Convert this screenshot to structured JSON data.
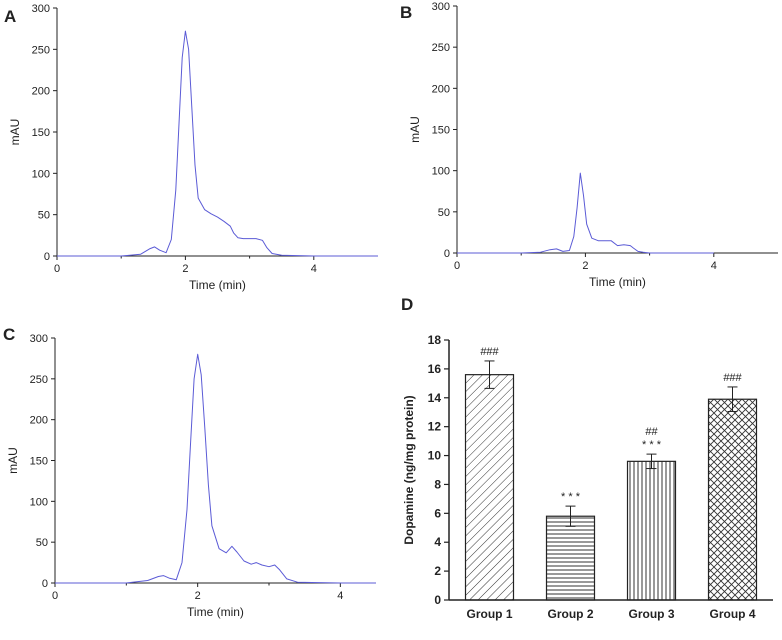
{
  "colors": {
    "trace": "#5b5bd6",
    "axis": "#222222",
    "hatch": "#333333"
  },
  "chart_data": [
    {
      "type": "line",
      "panel_label": "A",
      "xlabel": "Time (min)",
      "ylabel": "mAU",
      "xlim": [
        0,
        5
      ],
      "ylim": [
        0,
        300
      ],
      "xticks": [
        0,
        2,
        4
      ],
      "yticks": [
        0,
        50,
        100,
        150,
        200,
        250,
        300
      ],
      "x": [
        0,
        0.5,
        1.0,
        1.3,
        1.45,
        1.52,
        1.6,
        1.7,
        1.78,
        1.85,
        1.9,
        1.95,
        2.0,
        2.05,
        2.1,
        2.15,
        2.2,
        2.3,
        2.4,
        2.5,
        2.6,
        2.7,
        2.75,
        2.82,
        2.9,
        3.0,
        3.1,
        3.2,
        3.27,
        3.35,
        3.5,
        4.0,
        5.0
      ],
      "y": [
        0,
        0,
        0,
        2,
        9,
        11,
        7,
        4,
        20,
        80,
        160,
        240,
        272,
        250,
        180,
        110,
        70,
        56,
        51,
        47,
        42,
        36,
        28,
        22,
        21,
        21,
        21,
        19,
        10,
        3,
        1,
        0,
        0
      ]
    },
    {
      "type": "line",
      "panel_label": "B",
      "xlabel": "Time (min)",
      "ylabel": "mAU",
      "xlim": [
        0,
        5
      ],
      "ylim": [
        0,
        300
      ],
      "xticks": [
        0,
        2,
        4
      ],
      "yticks": [
        0,
        50,
        100,
        150,
        200,
        250,
        300
      ],
      "x": [
        0,
        0.5,
        1.0,
        1.3,
        1.45,
        1.55,
        1.65,
        1.75,
        1.82,
        1.87,
        1.92,
        1.97,
        2.02,
        2.1,
        2.2,
        2.3,
        2.4,
        2.5,
        2.6,
        2.7,
        2.75,
        2.82,
        2.9,
        3.0,
        4.0
      ],
      "y": [
        0,
        0,
        0,
        1,
        4,
        5,
        2,
        3,
        20,
        55,
        97,
        70,
        35,
        18,
        15,
        15,
        15,
        9,
        10,
        9,
        6,
        2,
        1,
        0,
        0
      ]
    },
    {
      "type": "line",
      "panel_label": "C",
      "xlabel": "Time (min)",
      "ylabel": "mAU",
      "xlim": [
        0,
        4.5
      ],
      "ylim": [
        0,
        300
      ],
      "xticks": [
        0,
        2,
        4
      ],
      "yticks": [
        0,
        50,
        100,
        150,
        200,
        250,
        300
      ],
      "x": [
        0,
        0.5,
        1.0,
        1.3,
        1.45,
        1.52,
        1.6,
        1.7,
        1.78,
        1.85,
        1.9,
        1.95,
        2.0,
        2.05,
        2.1,
        2.15,
        2.2,
        2.3,
        2.4,
        2.48,
        2.55,
        2.65,
        2.75,
        2.82,
        2.9,
        3.0,
        3.08,
        3.15,
        3.25,
        3.4,
        4.0,
        4.5
      ],
      "y": [
        0,
        0,
        0,
        3,
        8,
        9,
        6,
        4,
        25,
        90,
        170,
        250,
        280,
        255,
        190,
        120,
        70,
        42,
        37,
        45,
        38,
        27,
        23,
        25,
        22,
        20,
        22,
        16,
        5,
        1,
        0,
        0
      ]
    },
    {
      "type": "bar",
      "panel_label": "D",
      "categories": [
        "Group 1",
        "Group 2",
        "Group 3",
        "Group 4"
      ],
      "values": [
        15.6,
        5.8,
        9.6,
        13.9
      ],
      "errors": [
        0.95,
        0.7,
        0.5,
        0.85
      ],
      "annotations": [
        [
          "###"
        ],
        [
          "* * *"
        ],
        [
          "##",
          "* * *"
        ],
        [
          "###"
        ]
      ],
      "patterns": [
        "diagonal",
        "horizontal",
        "vertical",
        "crosshatch"
      ],
      "ylabel": "Dopamine (ng/mg protein)",
      "xlabel": "",
      "ylim": [
        0,
        18
      ],
      "yticks": [
        0,
        2,
        4,
        6,
        8,
        10,
        12,
        14,
        16,
        18
      ]
    }
  ]
}
